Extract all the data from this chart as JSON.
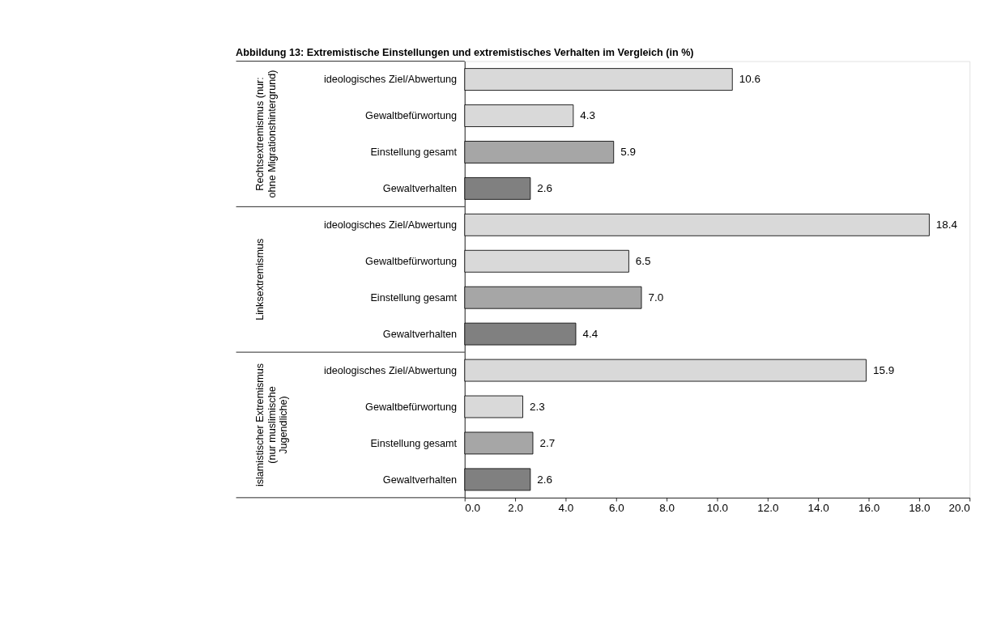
{
  "chart_data": {
    "type": "bar",
    "orientation": "horizontal",
    "title": "Abbildung 13: Extremistische Einstellungen und extremistisches Verhalten im Vergleich (in %)",
    "categories": [
      "ideologisches Ziel/Abwertung",
      "Gewaltbefürwortung",
      "Einstellung gesamt",
      "Gewaltverhalten",
      "ideologisches Ziel/Abwertung",
      "Gewaltbefürwortung",
      "Einstellung gesamt",
      "Gewaltverhalten",
      "ideologisches Ziel/Abwertung",
      "Gewaltbefürwortung",
      "Einstellung gesamt",
      "Gewaltverhalten"
    ],
    "values": [
      10.6,
      4.3,
      5.9,
      2.6,
      18.4,
      6.5,
      7.0,
      4.4,
      15.9,
      2.3,
      2.7,
      2.6
    ],
    "colors": [
      "#d9d9d9",
      "#d9d9d9",
      "#a6a6a6",
      "#808080",
      "#d9d9d9",
      "#d9d9d9",
      "#a6a6a6",
      "#808080",
      "#d9d9d9",
      "#d9d9d9",
      "#a6a6a6",
      "#808080"
    ],
    "xlim": [
      0,
      20
    ],
    "xticks": [
      {
        "value": 0,
        "label": "0.0"
      },
      {
        "value": 2,
        "label": "2.0"
      },
      {
        "value": 4,
        "label": "4.0"
      },
      {
        "value": 6,
        "label": "6.0"
      },
      {
        "value": 8,
        "label": "8.0"
      },
      {
        "value": 10,
        "label": "10.0"
      },
      {
        "value": 12,
        "label": "12.0"
      },
      {
        "value": 14,
        "label": "14.0"
      },
      {
        "value": 16,
        "label": "16.0"
      },
      {
        "value": 18,
        "label": "18.0"
      },
      {
        "value": 20,
        "label": "20.0"
      }
    ],
    "annotations": [
      "Rechtsextremismus (nur:\nohne Migrationshintergrund)",
      "Linksextremismus",
      "islamistischer Extremismus\n(nur muslimische\nJugendliche)"
    ],
    "value_labels": [
      "10.6",
      "4.3",
      "5.9",
      "2.6",
      "18.4",
      "6.5",
      "7.0",
      "4.4",
      "15.9",
      "2.3",
      "2.7",
      "2.6"
    ]
  }
}
